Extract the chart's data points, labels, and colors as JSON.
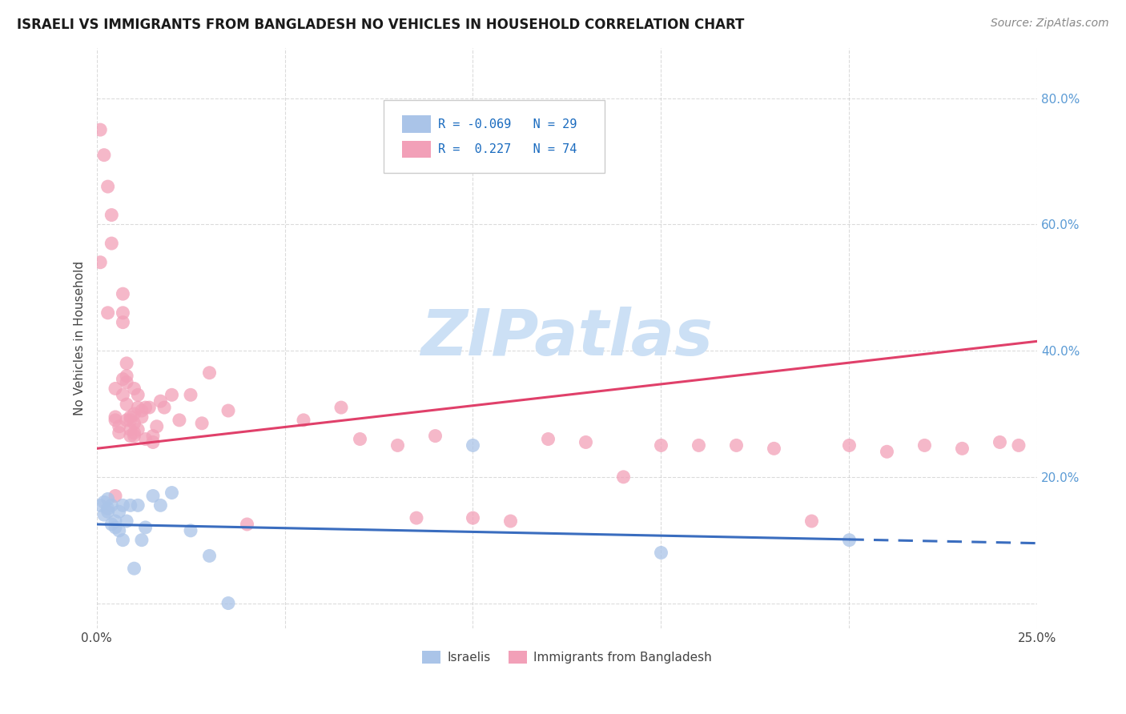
{
  "title": "ISRAELI VS IMMIGRANTS FROM BANGLADESH NO VEHICLES IN HOUSEHOLD CORRELATION CHART",
  "source": "Source: ZipAtlas.com",
  "ylabel": "No Vehicles in Household",
  "x_min": 0.0,
  "x_max": 0.25,
  "y_min": -0.04,
  "y_max": 0.88,
  "x_ticks": [
    0.0,
    0.05,
    0.1,
    0.15,
    0.2,
    0.25
  ],
  "x_tick_labels": [
    "0.0%",
    "",
    "",
    "",
    "",
    "25.0%"
  ],
  "y_ticks": [
    0.0,
    0.2,
    0.4,
    0.6,
    0.8
  ],
  "y_tick_labels_right": [
    "",
    "20.0%",
    "40.0%",
    "60.0%",
    "80.0%"
  ],
  "color_israeli": "#aac4e8",
  "color_bangladesh": "#f2a0b8",
  "color_line_israeli": "#3a6dbf",
  "color_line_bangladesh": "#e0406a",
  "watermark_color": "#cce0f5",
  "background_color": "#ffffff",
  "grid_color": "#cccccc",
  "scatter_israeli_x": [
    0.001,
    0.002,
    0.002,
    0.003,
    0.003,
    0.003,
    0.004,
    0.004,
    0.005,
    0.005,
    0.006,
    0.006,
    0.007,
    0.007,
    0.008,
    0.009,
    0.01,
    0.011,
    0.012,
    0.013,
    0.015,
    0.017,
    0.02,
    0.025,
    0.03,
    0.035,
    0.1,
    0.15,
    0.2
  ],
  "scatter_israeli_y": [
    0.155,
    0.14,
    0.16,
    0.145,
    0.15,
    0.165,
    0.125,
    0.155,
    0.12,
    0.13,
    0.115,
    0.145,
    0.1,
    0.155,
    0.13,
    0.155,
    0.055,
    0.155,
    0.1,
    0.12,
    0.17,
    0.155,
    0.175,
    0.115,
    0.075,
    0.0,
    0.25,
    0.08,
    0.1
  ],
  "scatter_bangladesh_x": [
    0.001,
    0.001,
    0.002,
    0.003,
    0.003,
    0.004,
    0.004,
    0.005,
    0.005,
    0.005,
    0.005,
    0.006,
    0.006,
    0.007,
    0.007,
    0.007,
    0.007,
    0.007,
    0.008,
    0.008,
    0.008,
    0.008,
    0.008,
    0.009,
    0.009,
    0.009,
    0.009,
    0.01,
    0.01,
    0.01,
    0.01,
    0.01,
    0.011,
    0.011,
    0.011,
    0.012,
    0.012,
    0.013,
    0.013,
    0.014,
    0.015,
    0.015,
    0.016,
    0.017,
    0.018,
    0.02,
    0.022,
    0.025,
    0.028,
    0.03,
    0.035,
    0.04,
    0.055,
    0.065,
    0.07,
    0.08,
    0.085,
    0.09,
    0.1,
    0.11,
    0.12,
    0.13,
    0.14,
    0.15,
    0.16,
    0.17,
    0.18,
    0.19,
    0.2,
    0.21,
    0.22,
    0.23,
    0.24,
    0.245
  ],
  "scatter_bangladesh_y": [
    0.54,
    0.75,
    0.71,
    0.66,
    0.46,
    0.615,
    0.57,
    0.34,
    0.295,
    0.29,
    0.17,
    0.28,
    0.27,
    0.49,
    0.46,
    0.445,
    0.355,
    0.33,
    0.35,
    0.38,
    0.36,
    0.315,
    0.29,
    0.295,
    0.29,
    0.275,
    0.265,
    0.34,
    0.3,
    0.27,
    0.265,
    0.285,
    0.31,
    0.33,
    0.275,
    0.305,
    0.295,
    0.31,
    0.26,
    0.31,
    0.255,
    0.265,
    0.28,
    0.32,
    0.31,
    0.33,
    0.29,
    0.33,
    0.285,
    0.365,
    0.305,
    0.125,
    0.29,
    0.31,
    0.26,
    0.25,
    0.135,
    0.265,
    0.135,
    0.13,
    0.26,
    0.255,
    0.2,
    0.25,
    0.25,
    0.25,
    0.245,
    0.13,
    0.25,
    0.24,
    0.25,
    0.245,
    0.255,
    0.25
  ],
  "trendline_ban_x0": 0.0,
  "trendline_ban_y0": 0.245,
  "trendline_ban_x1": 0.25,
  "trendline_ban_y1": 0.415,
  "trendline_isr_x0": 0.0,
  "trendline_isr_y0": 0.125,
  "trendline_isr_x1": 0.25,
  "trendline_isr_y1": 0.095
}
